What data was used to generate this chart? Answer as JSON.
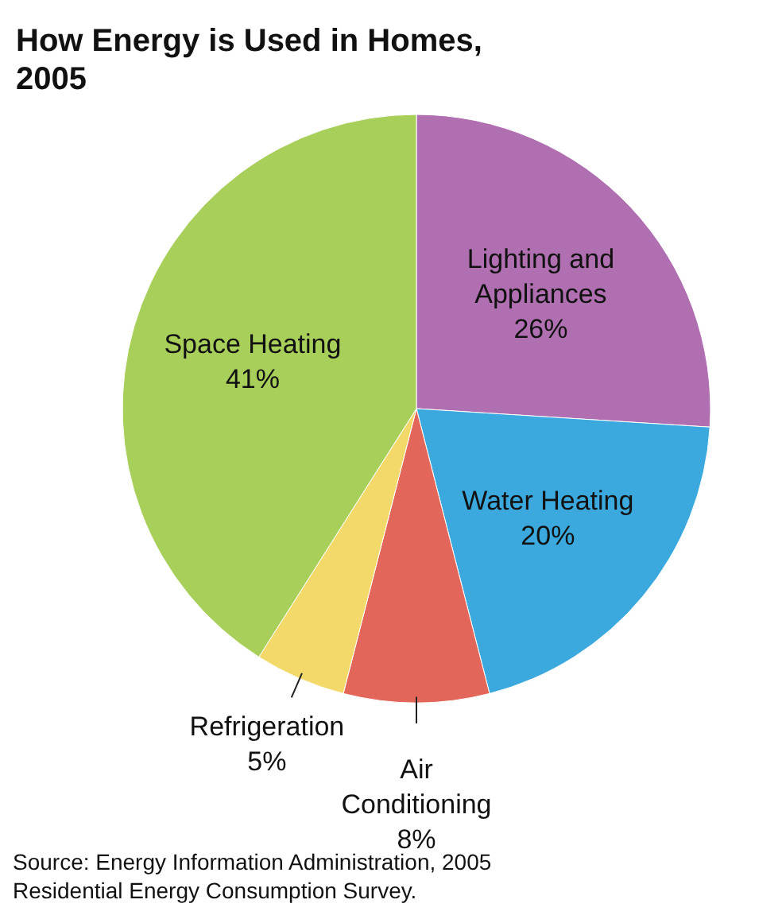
{
  "chart_data": {
    "type": "pie",
    "title": "How Energy is Used in Homes, 2005",
    "categories": [
      "Lighting and Appliances",
      "Water Heating",
      "Air Conditioning",
      "Refrigeration",
      "Space Heating"
    ],
    "values": [
      26,
      20,
      8,
      5,
      41
    ],
    "value_labels": [
      "26%",
      "20%",
      "8%",
      "5%",
      "41%"
    ],
    "colors": [
      "#b06fb0",
      "#3ba9dd",
      "#e2675a",
      "#f3d96a",
      "#a9cf5b"
    ],
    "annotations": [
      "Source: Energy Information Administration, 2005 Residential Energy Consumption Survey."
    ]
  }
}
